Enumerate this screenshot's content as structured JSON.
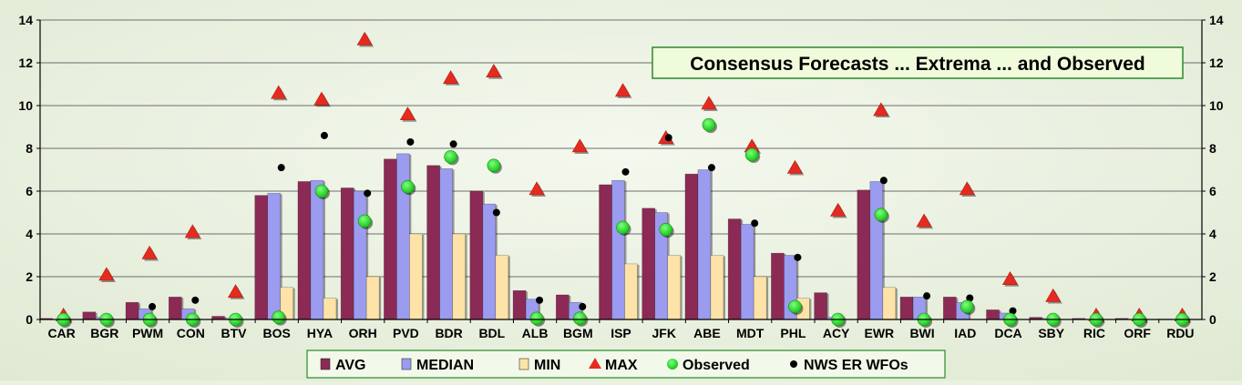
{
  "chart_data": {
    "type": "bar",
    "title": "Consensus Forecasts ... Extrema ... and Observed",
    "xlabel": "",
    "ylabel": "",
    "ylim": [
      0,
      14
    ],
    "yticks": [
      0,
      2,
      4,
      6,
      8,
      10,
      12,
      14
    ],
    "grid": true,
    "legend_position": "bottom",
    "categories": [
      "CAR",
      "BGR",
      "PWM",
      "CON",
      "BTV",
      "BOS",
      "HYA",
      "ORH",
      "PVD",
      "BDR",
      "BDL",
      "ALB",
      "BGM",
      "ISP",
      "JFK",
      "ABE",
      "MDT",
      "PHL",
      "ACY",
      "EWR",
      "BWI",
      "IAD",
      "DCA",
      "SBY",
      "RIC",
      "ORF",
      "RDU"
    ],
    "series": [
      {
        "name": "AVG",
        "kind": "bar",
        "color": "#8b2a55",
        "values": [
          0.05,
          0.35,
          0.8,
          1.05,
          0.15,
          5.8,
          6.45,
          6.15,
          7.5,
          7.2,
          6.0,
          1.35,
          1.15,
          6.3,
          5.2,
          6.8,
          4.7,
          3.1,
          1.25,
          6.05,
          1.05,
          1.05,
          0.45,
          0.1,
          0.05,
          0.05,
          0.02
        ]
      },
      {
        "name": "MEDIAN",
        "kind": "bar",
        "color": "#9b9bf0",
        "values": [
          0.0,
          0.1,
          0.5,
          0.5,
          0.05,
          5.9,
          6.5,
          6.0,
          7.75,
          7.05,
          5.4,
          0.95,
          0.8,
          6.5,
          5.0,
          7.0,
          4.45,
          3.0,
          0.1,
          6.45,
          1.05,
          0.8,
          0.3,
          0.05,
          0.0,
          0.0,
          0.0
        ]
      },
      {
        "name": "MIN",
        "kind": "bar",
        "color": "#fde3a7",
        "values": [
          0,
          0,
          0,
          0,
          0,
          1.5,
          1.0,
          2.0,
          4.0,
          4.0,
          3.0,
          0,
          0,
          2.6,
          3.0,
          3.0,
          2.0,
          1.0,
          0,
          1.5,
          0,
          0,
          0,
          0,
          0,
          0,
          0
        ]
      },
      {
        "name": "MAX",
        "kind": "marker",
        "color": "#e52b1f",
        "values": [
          0.1,
          2.0,
          3.0,
          4.0,
          1.2,
          10.5,
          10.2,
          13.0,
          9.5,
          11.2,
          11.5,
          6.0,
          8.0,
          10.6,
          8.4,
          10.0,
          8.0,
          7.0,
          5.0,
          9.7,
          4.5,
          6.0,
          1.8,
          1.0,
          0.1,
          0.1,
          0.1
        ]
      },
      {
        "name": "Observed",
        "kind": "marker",
        "color": "#22dd22",
        "values": [
          0,
          0,
          0,
          0,
          0,
          0.1,
          6.0,
          4.6,
          6.2,
          7.6,
          7.2,
          0.05,
          0.05,
          4.3,
          4.2,
          9.1,
          7.7,
          0.6,
          0,
          4.9,
          0,
          0.6,
          0,
          0,
          0,
          0,
          0
        ]
      },
      {
        "name": "NWS ER WFOs",
        "kind": "marker",
        "color": "#000000",
        "values": [
          0,
          0,
          0.6,
          0.9,
          0.05,
          7.1,
          8.6,
          5.9,
          8.3,
          8.2,
          5.0,
          0.9,
          0.6,
          6.9,
          8.5,
          7.1,
          4.5,
          2.9,
          0.05,
          6.5,
          1.1,
          1.0,
          0.4,
          0.05,
          0,
          0,
          0
        ]
      }
    ]
  }
}
